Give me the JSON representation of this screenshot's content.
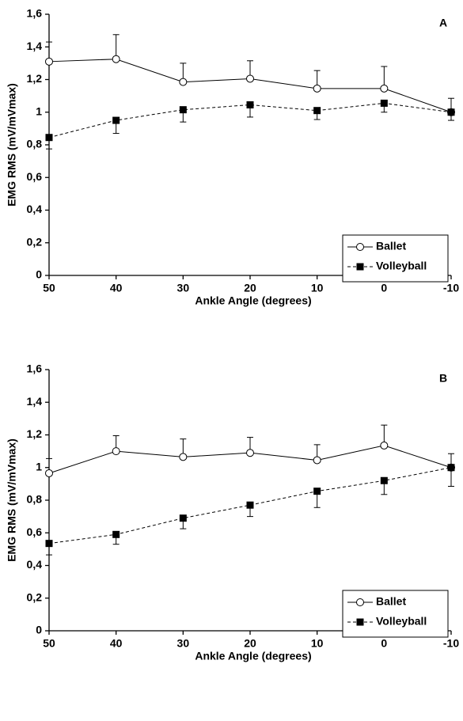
{
  "chart_data": [
    {
      "type": "line",
      "panel_label": "A",
      "xlabel": "Ankle Angle (degrees)",
      "ylabel": "EMG RMS (mV/mVmax)",
      "x": [
        50,
        40,
        30,
        20,
        10,
        0,
        -10
      ],
      "xlim": [
        50,
        -10
      ],
      "xticks": [
        50,
        40,
        30,
        20,
        10,
        0,
        -10
      ],
      "ylim": [
        0,
        1.6
      ],
      "yticks": [
        0,
        {
          "value": 0.2,
          "label": "0,2"
        },
        {
          "value": 0.4,
          "label": "0,4"
        },
        {
          "value": 0.6,
          "label": "0,6"
        },
        {
          "value": 0.8,
          "label": "0,8"
        },
        1,
        {
          "value": 1.2,
          "label": "1,2"
        },
        {
          "value": 1.4,
          "label": "1,4"
        },
        {
          "value": 1.6,
          "label": "1,6"
        }
      ],
      "legend": "lower right",
      "series": [
        {
          "name": "Ballet",
          "color": "#000000",
          "marker": "circle",
          "marker_fill": "#ffffff",
          "linestyle": "solid",
          "error_side": "up",
          "values": [
            1.31,
            1.325,
            1.185,
            1.205,
            1.145,
            1.145,
            1.0
          ],
          "errors": [
            0.12,
            0.15,
            0.115,
            0.11,
            0.11,
            0.135,
            0.085
          ]
        },
        {
          "name": "Volleyball",
          "color": "#000000",
          "marker": "square",
          "marker_fill": "#000000",
          "linestyle": "dashed",
          "error_side": "down",
          "values": [
            0.845,
            0.95,
            1.015,
            1.045,
            1.01,
            1.055,
            1.0
          ],
          "errors": [
            0.07,
            0.08,
            0.075,
            0.075,
            0.055,
            0.055,
            0.05
          ]
        }
      ]
    },
    {
      "type": "line",
      "panel_label": "B",
      "xlabel": "Ankle Angle (degrees)",
      "ylabel": "EMG RMS (mV/mVmax)",
      "x": [
        50,
        40,
        30,
        20,
        10,
        0,
        -10
      ],
      "xlim": [
        50,
        -10
      ],
      "xticks": [
        50,
        40,
        30,
        20,
        10,
        0,
        -10
      ],
      "ylim": [
        0,
        1.6
      ],
      "yticks": [
        0,
        {
          "value": 0.2,
          "label": "0,2"
        },
        {
          "value": 0.4,
          "label": "0,4"
        },
        {
          "value": 0.6,
          "label": "0,6"
        },
        {
          "value": 0.8,
          "label": "0,8"
        },
        1,
        {
          "value": 1.2,
          "label": "1,2"
        },
        {
          "value": 1.4,
          "label": "1,4"
        },
        {
          "value": 1.6,
          "label": "1,6"
        }
      ],
      "legend": "lower right",
      "series": [
        {
          "name": "Ballet",
          "color": "#000000",
          "marker": "circle",
          "marker_fill": "#ffffff",
          "linestyle": "solid",
          "error_side": "up",
          "values": [
            0.965,
            1.1,
            1.065,
            1.09,
            1.045,
            1.135,
            1.0
          ],
          "errors": [
            0.09,
            0.095,
            0.11,
            0.095,
            0.095,
            0.125,
            0.085
          ]
        },
        {
          "name": "Volleyball",
          "color": "#000000",
          "marker": "square",
          "marker_fill": "#000000",
          "linestyle": "dashed",
          "error_side": "down",
          "values": [
            0.535,
            0.59,
            0.69,
            0.77,
            0.855,
            0.92,
            1.0
          ],
          "errors": [
            0.07,
            0.06,
            0.065,
            0.07,
            0.1,
            0.085,
            0.115
          ]
        }
      ]
    }
  ]
}
